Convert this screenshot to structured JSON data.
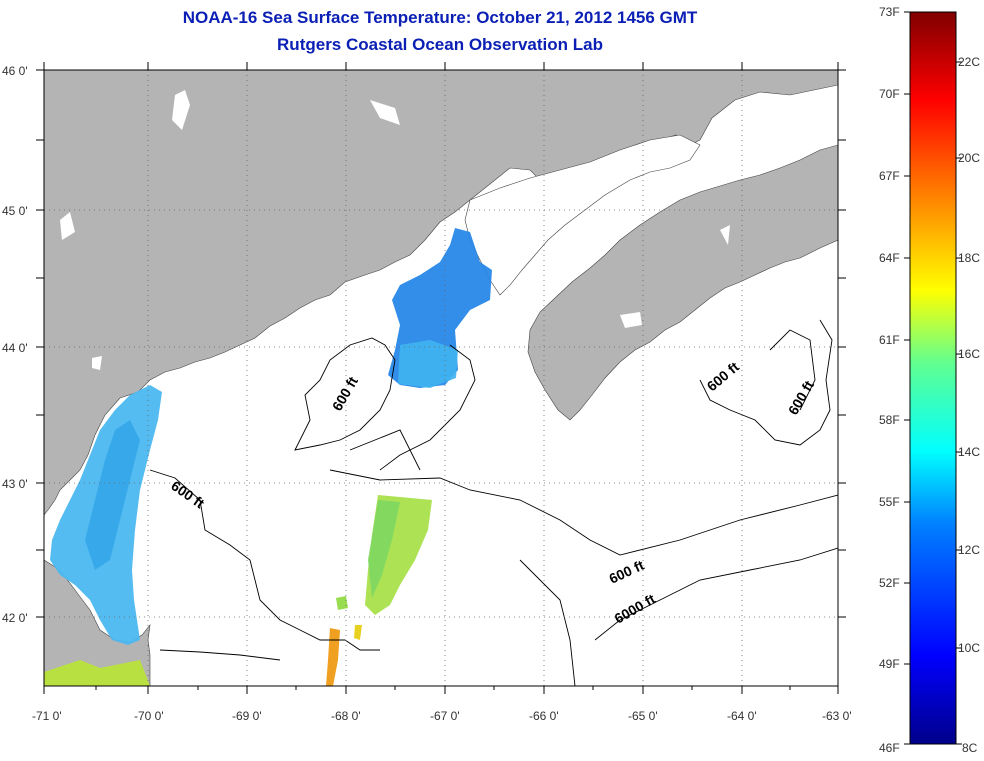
{
  "title": "NOAA-16 Sea Surface Temperature:  October 21, 2012 1456 GMT",
  "subtitle": "Rutgers Coastal Ocean Observation Lab",
  "lat_ticks": [
    "46 0'",
    "45 0'",
    "44 0'",
    "43 0'",
    "42 0'"
  ],
  "lon_ticks": [
    "-71 0'",
    "-70 0'",
    "-69 0'",
    "-68 0'",
    "-67 0'",
    "-66 0'",
    "-65 0'",
    "-64 0'",
    "-63 0'"
  ],
  "colorbar": {
    "f_labels": [
      "73F",
      "70F",
      "67F",
      "64F",
      "61F",
      "58F",
      "55F",
      "52F",
      "49F",
      "46F"
    ],
    "c_labels": [
      "22C",
      "20C",
      "18C",
      "16C",
      "14C",
      "12C",
      "10C",
      "8C"
    ]
  },
  "contour_labels": [
    "600 ft",
    "600 ft",
    "600 ft",
    "600 ft",
    "600 ft",
    "6000 ft"
  ],
  "colors": {
    "land": "#b4b4b4",
    "ocean": "#ffffff",
    "title": "#0b1fb5"
  }
}
